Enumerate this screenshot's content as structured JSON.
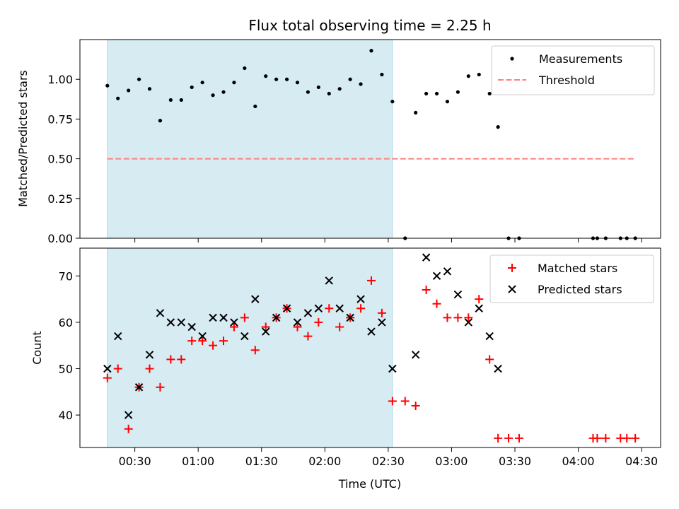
{
  "chart_data": [
    {
      "type": "scatter",
      "title": "Flux total observing time = 2.25 h",
      "xlabel": "",
      "ylabel": "Matched/Predicted stars",
      "xlim": [
        "00:04",
        "04:39"
      ],
      "ylim": [
        0,
        1.25
      ],
      "yticks": [
        "0.00",
        "0.25",
        "0.50",
        "0.75",
        "1.00"
      ],
      "ytick_values": [
        0,
        0.25,
        0.5,
        0.75,
        1.0
      ],
      "xticks": [
        "00:30",
        "01:00",
        "01:30",
        "02:00",
        "02:30",
        "03:00",
        "03:30",
        "04:00",
        "04:30"
      ],
      "xtick_labels_visible": false,
      "shaded_span": {
        "start": "00:17",
        "end": "02:32",
        "color": "#add8e6"
      },
      "grid": false,
      "legend": {
        "placement": "top-right",
        "entries": [
          "Measurements",
          "Threshold"
        ]
      },
      "series": [
        {
          "name": "Measurements",
          "kind": "points",
          "color": "#000000",
          "x": [
            "00:17",
            "00:22",
            "00:27",
            "00:32",
            "00:37",
            "00:42",
            "00:47",
            "00:52",
            "00:57",
            "01:02",
            "01:07",
            "01:12",
            "01:17",
            "01:22",
            "01:27",
            "01:32",
            "01:37",
            "01:42",
            "01:47",
            "01:52",
            "01:57",
            "02:02",
            "02:07",
            "02:12",
            "02:17",
            "02:22",
            "02:27",
            "02:32",
            "02:38",
            "02:43",
            "02:48",
            "02:53",
            "02:58",
            "03:03",
            "03:08",
            "03:13",
            "03:18",
            "03:22",
            "03:27",
            "03:32",
            "04:07",
            "04:09",
            "04:13",
            "04:20",
            "04:23",
            "04:27"
          ],
          "y": [
            0.96,
            0.88,
            0.93,
            1.0,
            0.94,
            0.74,
            0.87,
            0.87,
            0.95,
            0.98,
            0.9,
            0.92,
            0.98,
            1.07,
            0.83,
            1.02,
            1.0,
            1.0,
            0.98,
            0.92,
            0.95,
            0.91,
            0.94,
            1.0,
            0.97,
            1.18,
            1.03,
            0.86,
            0.0,
            0.79,
            0.91,
            0.91,
            0.86,
            0.92,
            1.02,
            1.03,
            0.91,
            0.7,
            0.0,
            0.0,
            0.0,
            0.0,
            0.0,
            0.0,
            0.0,
            0.0
          ]
        },
        {
          "name": "Threshold",
          "kind": "dashed-line",
          "color": "#ff7f7f",
          "x": [
            "00:17",
            "04:27"
          ],
          "y": [
            0.5,
            0.5
          ]
        }
      ]
    },
    {
      "type": "scatter",
      "title": "",
      "xlabel": "Time (UTC)",
      "ylabel": "Count",
      "xlim": [
        "00:04",
        "04:39"
      ],
      "ylim": [
        33,
        76
      ],
      "yticks": [
        "40",
        "50",
        "60",
        "70"
      ],
      "ytick_values": [
        40,
        50,
        60,
        70
      ],
      "xticks": [
        "00:30",
        "01:00",
        "01:30",
        "02:00",
        "02:30",
        "03:00",
        "03:30",
        "04:00",
        "04:30"
      ],
      "shaded_span": {
        "start": "00:17",
        "end": "02:32",
        "color": "#add8e6"
      },
      "grid": false,
      "legend": {
        "placement": "top-right",
        "entries": [
          "Matched stars",
          "Predicted stars"
        ]
      },
      "series": [
        {
          "name": "Matched stars",
          "kind": "plus",
          "color": "#ff0000",
          "x": [
            "00:17",
            "00:22",
            "00:27",
            "00:32",
            "00:37",
            "00:42",
            "00:47",
            "00:52",
            "00:57",
            "01:02",
            "01:07",
            "01:12",
            "01:17",
            "01:22",
            "01:27",
            "01:32",
            "01:37",
            "01:42",
            "01:47",
            "01:52",
            "01:57",
            "02:02",
            "02:07",
            "02:12",
            "02:17",
            "02:22",
            "02:27",
            "02:32",
            "02:38",
            "02:43",
            "02:48",
            "02:53",
            "02:58",
            "03:03",
            "03:08",
            "03:13",
            "03:18",
            "03:22",
            "03:27",
            "03:32",
            "04:07",
            "04:09",
            "04:13",
            "04:20",
            "04:23",
            "04:27"
          ],
          "y": [
            48,
            50,
            37,
            46,
            50,
            46,
            52,
            52,
            56,
            56,
            55,
            56,
            59,
            61,
            54,
            59,
            61,
            63,
            59,
            57,
            60,
            63,
            59,
            61,
            63,
            69,
            62,
            43,
            43,
            42,
            67,
            64,
            61,
            61,
            61,
            65,
            52,
            35,
            35,
            35,
            35,
            35,
            35,
            35,
            35,
            35
          ]
        },
        {
          "name": "Predicted stars",
          "kind": "cross",
          "color": "#000000",
          "x": [
            "00:17",
            "00:22",
            "00:27",
            "00:32",
            "00:37",
            "00:42",
            "00:47",
            "00:52",
            "00:57",
            "01:02",
            "01:07",
            "01:12",
            "01:17",
            "01:22",
            "01:27",
            "01:32",
            "01:37",
            "01:42",
            "01:47",
            "01:52",
            "01:57",
            "02:02",
            "02:07",
            "02:12",
            "02:17",
            "02:22",
            "02:27",
            "02:32",
            "02:43",
            "02:48",
            "02:53",
            "02:58",
            "03:03",
            "03:08",
            "03:13",
            "03:18",
            "03:22"
          ],
          "y": [
            50,
            57,
            40,
            46,
            53,
            62,
            60,
            60,
            59,
            57,
            61,
            61,
            60,
            57,
            65,
            58,
            61,
            63,
            60,
            62,
            63,
            69,
            63,
            61,
            65,
            58,
            60,
            50,
            53,
            74,
            70,
            71,
            66,
            60,
            63,
            57,
            50
          ]
        }
      ]
    }
  ]
}
